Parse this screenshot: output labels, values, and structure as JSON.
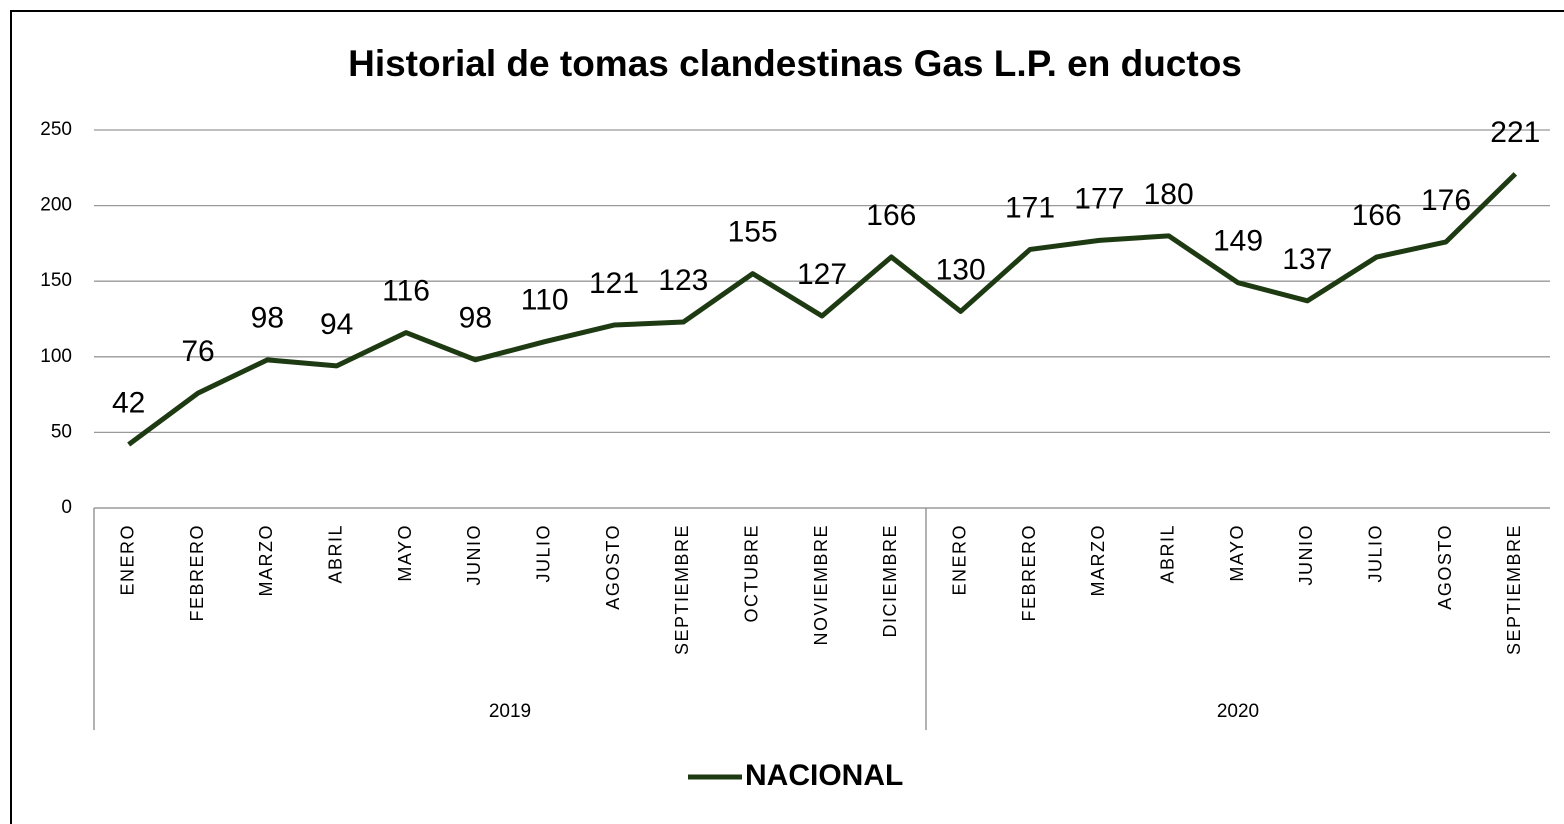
{
  "chart_data": {
    "type": "line",
    "title": "Historial de tomas clandestinas Gas L.P. en ductos",
    "categories": [
      "ENERO",
      "FEBRERO",
      "MARZO",
      "ABRIL",
      "MAYO",
      "JUNIO",
      "JULIO",
      "AGOSTO",
      "SEPTIEMBRE",
      "OCTUBRE",
      "NOVIEMBRE",
      "DICIEMBRE",
      "ENERO",
      "FEBRERO",
      "MARZO",
      "ABRIL",
      "MAYO",
      "JUNIO",
      "JULIO",
      "AGOSTO",
      "SEPTIEMBRE"
    ],
    "groups": [
      {
        "label": "2019",
        "size": 12
      },
      {
        "label": "2020",
        "size": 9
      }
    ],
    "series": [
      {
        "name": "NACIONAL",
        "color": "#1e3a12",
        "values": [
          42,
          76,
          98,
          94,
          116,
          98,
          110,
          121,
          123,
          155,
          127,
          166,
          130,
          171,
          177,
          180,
          149,
          137,
          166,
          176,
          221
        ]
      }
    ],
    "ylim": [
      0,
      250
    ],
    "yticks": [
      0,
      50,
      100,
      150,
      200,
      250
    ],
    "grid": true,
    "legend": "bottom"
  }
}
